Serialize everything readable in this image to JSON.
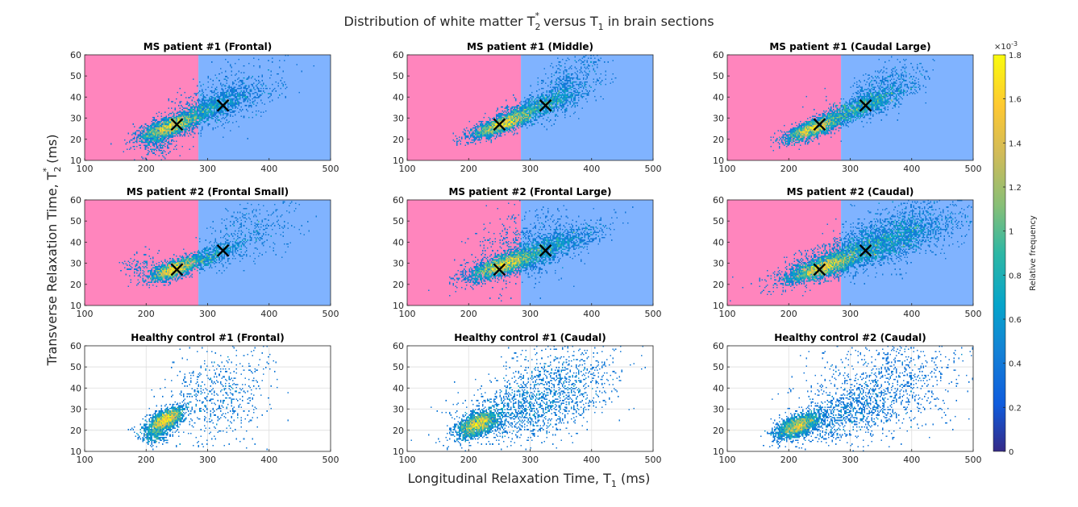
{
  "figure": {
    "title_prefix": "Distribution of white matter T",
    "title_middle": " versus T",
    "title_suffix": " in brain sections",
    "title_sub_2": "2",
    "title_sup_star": "*",
    "title_sub_1": "1",
    "ylabel_prefix": "Transverse Relaxation Time, T",
    "ylabel_sub": "2",
    "ylabel_sup": "*",
    "ylabel_suffix": " (ms)",
    "xlabel_prefix": "Longitudinal Relaxation Time, T",
    "xlabel_sub": "1",
    "xlabel_suffix": " (ms)"
  },
  "colors": {
    "ms_region_left": "#FF85BD",
    "ms_region_right": "#80B3FF",
    "marker": "#000000"
  },
  "colorbar": {
    "label": "Relative frequency",
    "exponent_base": "×10",
    "exponent_power": "-3",
    "ticks": [
      "0",
      "0.2",
      "0.4",
      "0.6",
      "0.8",
      "1",
      "1.2",
      "1.4",
      "1.6",
      "1.8"
    ],
    "range": [
      0,
      1.8
    ]
  },
  "chart_data": [
    {
      "type": "heatmap",
      "title": "MS patient #1 (Frontal)",
      "group": "ms",
      "xlim": [
        100,
        500
      ],
      "ylim": [
        10,
        60
      ],
      "xticks": [
        "100",
        "200",
        "300",
        "400",
        "500"
      ],
      "yticks": [
        "10",
        "20",
        "30",
        "40",
        "50",
        "60"
      ],
      "boundary_t1": 285,
      "markers": [
        {
          "x": 250,
          "y": 27
        },
        {
          "x": 325,
          "y": 36
        }
      ],
      "clusters": [
        {
          "cx": 240,
          "cy": 26,
          "sx": 24,
          "sy": 3.2,
          "rho": 0.7,
          "n": 2200
        },
        {
          "cx": 300,
          "cy": 34,
          "sx": 40,
          "sy": 5,
          "rho": 0.8,
          "n": 1200
        },
        {
          "cx": 335,
          "cy": 40,
          "sx": 45,
          "sy": 8,
          "rho": 0.5,
          "n": 500
        },
        {
          "cx": 220,
          "cy": 20,
          "sx": 15,
          "sy": 4,
          "rho": 0.2,
          "n": 350
        }
      ]
    },
    {
      "type": "heatmap",
      "title": "MS patient #1 (Middle)",
      "group": "ms",
      "xlim": [
        100,
        500
      ],
      "ylim": [
        10,
        60
      ],
      "xticks": [
        "100",
        "200",
        "300",
        "400",
        "500"
      ],
      "yticks": [
        "10",
        "20",
        "30",
        "40",
        "50",
        "60"
      ],
      "boundary_t1": 285,
      "markers": [
        {
          "x": 250,
          "y": 27
        },
        {
          "x": 325,
          "y": 36
        }
      ],
      "clusters": [
        {
          "cx": 255,
          "cy": 27,
          "sx": 25,
          "sy": 3.2,
          "rho": 0.8,
          "n": 2100
        },
        {
          "cx": 310,
          "cy": 35,
          "sx": 40,
          "sy": 5,
          "rho": 0.85,
          "n": 1400
        },
        {
          "cx": 355,
          "cy": 45,
          "sx": 30,
          "sy": 8,
          "rho": 0.6,
          "n": 500
        }
      ]
    },
    {
      "type": "heatmap",
      "title": "MS patient #1 (Caudal Large)",
      "group": "ms",
      "xlim": [
        100,
        500
      ],
      "ylim": [
        10,
        60
      ],
      "xticks": [
        "100",
        "200",
        "300",
        "400",
        "500"
      ],
      "yticks": [
        "10",
        "20",
        "30",
        "40",
        "50",
        "60"
      ],
      "boundary_t1": 285,
      "markers": [
        {
          "x": 250,
          "y": 27
        },
        {
          "x": 325,
          "y": 36
        }
      ],
      "clusters": [
        {
          "cx": 240,
          "cy": 25,
          "sx": 22,
          "sy": 3,
          "rho": 0.75,
          "n": 2000
        },
        {
          "cx": 315,
          "cy": 35,
          "sx": 38,
          "sy": 5,
          "rho": 0.85,
          "n": 1500
        },
        {
          "cx": 350,
          "cy": 43,
          "sx": 35,
          "sy": 7,
          "rho": 0.6,
          "n": 500
        }
      ]
    },
    {
      "type": "heatmap",
      "title": "MS patient #2 (Frontal Small)",
      "group": "ms",
      "xlim": [
        100,
        500
      ],
      "ylim": [
        10,
        60
      ],
      "xticks": [
        "100",
        "200",
        "300",
        "400",
        "500"
      ],
      "yticks": [
        "10",
        "20",
        "30",
        "40",
        "50",
        "60"
      ],
      "boundary_t1": 285,
      "markers": [
        {
          "x": 250,
          "y": 27
        },
        {
          "x": 325,
          "y": 36
        }
      ],
      "clusters": [
        {
          "cx": 245,
          "cy": 27,
          "sx": 20,
          "sy": 2.8,
          "rho": 0.7,
          "n": 1800
        },
        {
          "cx": 300,
          "cy": 33,
          "sx": 30,
          "sy": 4,
          "rho": 0.8,
          "n": 700
        },
        {
          "cx": 370,
          "cy": 45,
          "sx": 40,
          "sy": 8,
          "rho": 0.4,
          "n": 350
        },
        {
          "cx": 190,
          "cy": 29,
          "sx": 15,
          "sy": 3,
          "rho": 0.1,
          "n": 100
        }
      ]
    },
    {
      "type": "heatmap",
      "title": "MS patient #2 (Frontal Large)",
      "group": "ms",
      "xlim": [
        100,
        500
      ],
      "ylim": [
        10,
        60
      ],
      "xticks": [
        "100",
        "200",
        "300",
        "400",
        "500"
      ],
      "yticks": [
        "10",
        "20",
        "30",
        "40",
        "50",
        "60"
      ],
      "boundary_t1": 285,
      "markers": [
        {
          "x": 250,
          "y": 27
        },
        {
          "x": 325,
          "y": 36
        }
      ],
      "clusters": [
        {
          "cx": 255,
          "cy": 29,
          "sx": 28,
          "sy": 3.5,
          "rho": 0.75,
          "n": 2600
        },
        {
          "cx": 320,
          "cy": 36,
          "sx": 45,
          "sy": 5.5,
          "rho": 0.8,
          "n": 1600
        },
        {
          "cx": 290,
          "cy": 38,
          "sx": 40,
          "sy": 9,
          "rho": 0.3,
          "n": 600
        }
      ]
    },
    {
      "type": "heatmap",
      "title": "MS patient #2 (Caudal)",
      "group": "ms",
      "xlim": [
        100,
        500
      ],
      "ylim": [
        10,
        60
      ],
      "xticks": [
        "100",
        "200",
        "300",
        "400",
        "500"
      ],
      "yticks": [
        "10",
        "20",
        "30",
        "40",
        "50",
        "60"
      ],
      "boundary_t1": 285,
      "markers": [
        {
          "x": 250,
          "y": 27
        },
        {
          "x": 325,
          "y": 36
        }
      ],
      "clusters": [
        {
          "cx": 255,
          "cy": 28,
          "sx": 30,
          "sy": 3.5,
          "rho": 0.75,
          "n": 2600
        },
        {
          "cx": 330,
          "cy": 37,
          "sx": 60,
          "sy": 7,
          "rho": 0.8,
          "n": 2600
        },
        {
          "cx": 380,
          "cy": 45,
          "sx": 55,
          "sy": 9,
          "rho": 0.5,
          "n": 900
        }
      ]
    },
    {
      "type": "heatmap",
      "title": "Healthy control #1 (Frontal)",
      "group": "hc",
      "xlim": [
        100,
        500
      ],
      "ylim": [
        10,
        60
      ],
      "xticks": [
        "100",
        "200",
        "300",
        "400",
        "500"
      ],
      "yticks": [
        "10",
        "20",
        "30",
        "40",
        "50",
        "60"
      ],
      "clusters": [
        {
          "cx": 232,
          "cy": 25,
          "sx": 15,
          "sy": 3,
          "rho": 0.6,
          "n": 1900
        },
        {
          "cx": 315,
          "cy": 36,
          "sx": 45,
          "sy": 12,
          "rho": 0.2,
          "n": 600
        },
        {
          "cx": 215,
          "cy": 18,
          "sx": 12,
          "sy": 2.5,
          "rho": 0.1,
          "n": 300
        }
      ]
    },
    {
      "type": "heatmap",
      "title": "Healthy control #1 (Caudal)",
      "group": "hc",
      "xlim": [
        100,
        500
      ],
      "ylim": [
        10,
        60
      ],
      "xticks": [
        "100",
        "200",
        "300",
        "400",
        "500"
      ],
      "yticks": [
        "10",
        "20",
        "30",
        "40",
        "50",
        "60"
      ],
      "clusters": [
        {
          "cx": 215,
          "cy": 23,
          "sx": 16,
          "sy": 3,
          "rho": 0.5,
          "n": 2000
        },
        {
          "cx": 290,
          "cy": 30,
          "sx": 55,
          "sy": 8,
          "rho": 0.4,
          "n": 1200
        },
        {
          "cx": 350,
          "cy": 45,
          "sx": 50,
          "sy": 10,
          "rho": 0.2,
          "n": 600
        }
      ]
    },
    {
      "type": "heatmap",
      "title": "Healthy control #2 (Caudal)",
      "group": "hc",
      "xlim": [
        100,
        500
      ],
      "ylim": [
        10,
        60
      ],
      "xticks": [
        "100",
        "200",
        "300",
        "400",
        "500"
      ],
      "yticks": [
        "10",
        "20",
        "30",
        "40",
        "50",
        "60"
      ],
      "clusters": [
        {
          "cx": 215,
          "cy": 22,
          "sx": 18,
          "sy": 3,
          "rho": 0.6,
          "n": 2000
        },
        {
          "cx": 290,
          "cy": 27,
          "sx": 45,
          "sy": 7,
          "rho": 0.5,
          "n": 800
        },
        {
          "cx": 360,
          "cy": 42,
          "sx": 65,
          "sy": 13,
          "rho": 0.2,
          "n": 900
        }
      ]
    }
  ]
}
